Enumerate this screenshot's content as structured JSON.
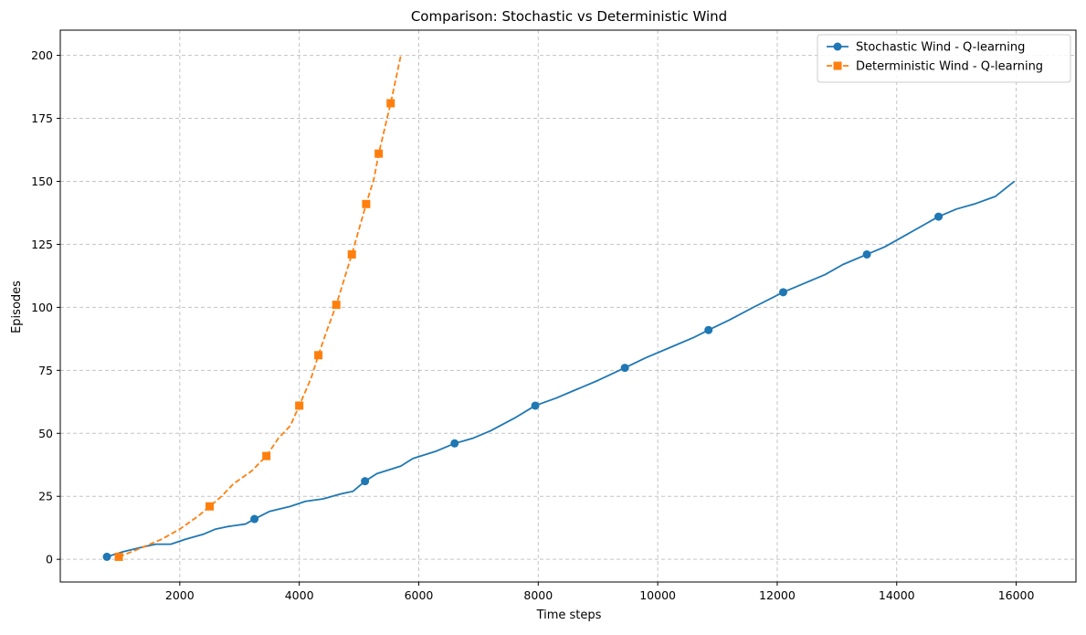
{
  "chart_data": {
    "type": "line",
    "title": "Comparison: Stochastic vs Deterministic Wind",
    "xlabel": "Time steps",
    "ylabel": "Episodes",
    "xlim": [
      0,
      17000
    ],
    "ylim": [
      -9,
      210
    ],
    "xticks": [
      2000,
      4000,
      6000,
      8000,
      10000,
      12000,
      14000,
      16000
    ],
    "yticks": [
      0,
      25,
      50,
      75,
      100,
      125,
      150,
      175,
      200
    ],
    "grid": true,
    "legend_position": "top-right",
    "series": [
      {
        "name": "Stochastic Wind - Q-learning",
        "color": "#1f77b4",
        "line_style": "solid",
        "marker": "circle",
        "x": [
          780,
          1050,
          1400,
          1600,
          1850,
          2100,
          2400,
          2600,
          2800,
          3100,
          3250,
          3500,
          3850,
          4100,
          4400,
          4700,
          4900,
          5100,
          5300,
          5700,
          5900,
          6300,
          6600,
          6900,
          7200,
          7600,
          7950,
          8300,
          8600,
          9000,
          9450,
          9800,
          10200,
          10600,
          10850,
          11200,
          11600,
          12100,
          12500,
          12800,
          13100,
          13500,
          13800,
          14100,
          14400,
          14700,
          15000,
          15300,
          15650,
          15970
        ],
        "y": [
          1,
          3,
          5,
          6,
          6,
          8,
          10,
          12,
          13,
          14,
          16,
          19,
          21,
          23,
          24,
          26,
          27,
          31,
          34,
          37,
          40,
          43,
          46,
          48,
          51,
          56,
          61,
          64,
          67,
          71,
          76,
          80,
          84,
          88,
          91,
          95,
          100,
          106,
          110,
          113,
          117,
          121,
          124,
          128,
          132,
          136,
          139,
          141,
          144,
          150
        ],
        "marker_indices": [
          0,
          10,
          17,
          22,
          26,
          30,
          34,
          37,
          41,
          45
        ]
      },
      {
        "name": "Deterministic Wind - Q-learning",
        "color": "#ff7f0e",
        "line_style": "dashed",
        "marker": "square",
        "x": [
          980,
          1300,
          1700,
          2000,
          2300,
          2500,
          2700,
          2900,
          3200,
          3450,
          3650,
          3850,
          4000,
          4200,
          4320,
          4450,
          4620,
          4750,
          4880,
          5000,
          5120,
          5250,
          5330,
          5430,
          5530,
          5620,
          5700
        ],
        "y": [
          1,
          4,
          8,
          12,
          17,
          21,
          25,
          30,
          35,
          41,
          48,
          53,
          61,
          72,
          81,
          90,
          101,
          111,
          121,
          131,
          141,
          151,
          161,
          171,
          181,
          191,
          200
        ],
        "marker_indices": [
          0,
          5,
          9,
          12,
          14,
          16,
          18,
          20,
          22,
          24
        ]
      }
    ]
  }
}
